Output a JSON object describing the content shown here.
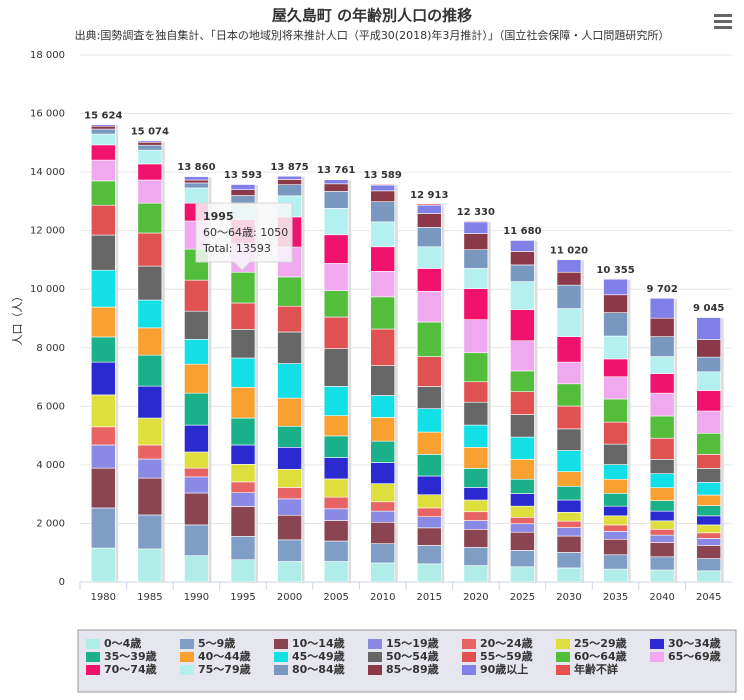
{
  "chart_data": {
    "type": "stacked_bar",
    "title": "屋久島町 の年齢別人口の推移",
    "subtitle": "出典:国勢調査を独自集計、「日本の地域別将来推計人口（平成30(2018)年3月推計）」（国立社会保障・人口問題研究所）",
    "y_label": "人口（人）",
    "categories": [
      "1980",
      "1985",
      "1990",
      "1995",
      "2000",
      "2005",
      "2010",
      "2015",
      "2020",
      "2025",
      "2030",
      "2035",
      "2040",
      "2045"
    ],
    "ylim": [
      0,
      18000
    ],
    "yticks": [
      0,
      {
        "value": 2000,
        "label": "2 000"
      },
      {
        "value": 4000,
        "label": "4 000"
      },
      {
        "value": 6000,
        "label": "6 000"
      },
      {
        "value": 8000,
        "label": "8 000"
      },
      {
        "value": 10000,
        "label": "10 000"
      },
      {
        "value": 12000,
        "label": "12 000"
      },
      {
        "value": 14000,
        "label": "14 000"
      },
      {
        "value": 16000,
        "label": "16 000"
      },
      {
        "value": 18000,
        "label": "18 000"
      }
    ],
    "grid": true,
    "legend": "bottom",
    "totals": [
      15624,
      15074,
      13860,
      13593,
      13875,
      13761,
      13589,
      12913,
      12330,
      11680,
      11020,
      10355,
      9702,
      9045
    ],
    "total_labels": [
      "15 624",
      "15 074",
      "13 860",
      "13 593",
      "13 875",
      "13 761",
      "13 589",
      "12 913",
      "12 330",
      "11 680",
      "11 020",
      "10 355",
      "9 702",
      "9 045"
    ],
    "series": [
      {
        "name": "0～4歳",
        "color": "#b0ece8",
        "values": [
          1160,
          1130,
          900,
          760,
          700,
          700,
          650,
          620,
          560,
          520,
          480,
          440,
          410,
          380
        ]
      },
      {
        "name": "5～9歳",
        "color": "#7f9ec6",
        "values": [
          1370,
          1160,
          1050,
          800,
          740,
          700,
          660,
          630,
          620,
          560,
          530,
          490,
          450,
          420
        ]
      },
      {
        "name": "10～14歳",
        "color": "#8b4452",
        "values": [
          1360,
          1260,
          1090,
          1020,
          840,
          700,
          730,
          600,
          620,
          620,
          560,
          530,
          490,
          450
        ]
      },
      {
        "name": "15～19歳",
        "color": "#8a8ae6",
        "values": [
          790,
          650,
          550,
          470,
          560,
          400,
          380,
          380,
          300,
          290,
          290,
          270,
          250,
          240
        ]
      },
      {
        "name": "20～24歳",
        "color": "#e86464",
        "values": [
          620,
          480,
          300,
          370,
          390,
          400,
          320,
          300,
          300,
          220,
          220,
          220,
          200,
          190
        ]
      },
      {
        "name": "25～29歳",
        "color": "#dede3c",
        "values": [
          1090,
          920,
          550,
          600,
          620,
          620,
          620,
          450,
          400,
          380,
          300,
          310,
          290,
          270
        ]
      },
      {
        "name": "30～34歳",
        "color": "#2a2ad0",
        "values": [
          1120,
          1090,
          920,
          660,
          750,
          730,
          720,
          640,
          430,
          430,
          420,
          330,
          330,
          310
        ]
      },
      {
        "name": "35～39歳",
        "color": "#1ab08a",
        "values": [
          860,
          1060,
          1090,
          920,
          720,
          740,
          730,
          740,
          650,
          490,
          470,
          440,
          360,
          350
        ]
      },
      {
        "name": "40～44歳",
        "color": "#f8a030",
        "values": [
          1020,
          930,
          990,
          1050,
          960,
          690,
          810,
          760,
          720,
          680,
          500,
          480,
          440,
          360
        ]
      },
      {
        "name": "45～49歳",
        "color": "#12dfe6",
        "values": [
          1260,
          950,
          850,
          1000,
          1180,
          1000,
          750,
          800,
          760,
          760,
          720,
          500,
          480,
          430
        ]
      },
      {
        "name": "50～54歳",
        "color": "#666666",
        "values": [
          1200,
          1160,
          960,
          980,
          1080,
          1290,
          1020,
          760,
          780,
          770,
          740,
          700,
          490,
          480
        ]
      },
      {
        "name": "55～59歳",
        "color": "#e05252",
        "values": [
          1020,
          1130,
          1060,
          900,
          880,
          1080,
          1250,
          1020,
          700,
          780,
          780,
          750,
          720,
          480
        ]
      },
      {
        "name": "60～64歳",
        "color": "#52be3c",
        "values": [
          830,
          1020,
          1060,
          1050,
          1000,
          900,
          1100,
          1180,
          990,
          710,
          760,
          790,
          760,
          720
        ]
      },
      {
        "name": "65～69歳",
        "color": "#f0a8ee",
        "values": [
          710,
          790,
          960,
          980,
          1020,
          930,
          870,
          1050,
          1130,
          1030,
          740,
          760,
          780,
          760
        ]
      },
      {
        "name": "70～74歳",
        "color": "#f0126c",
        "values": [
          520,
          550,
          610,
          820,
          1030,
          980,
          840,
          780,
          1060,
          1060,
          870,
          610,
          670,
          700
        ]
      },
      {
        "name": "75～79歳",
        "color": "#b4f0f0",
        "values": [
          370,
          470,
          520,
          520,
          720,
          900,
          850,
          740,
          690,
          960,
          960,
          780,
          580,
          640
        ]
      },
      {
        "name": "80～84歳",
        "color": "#7898c0",
        "values": [
          170,
          170,
          170,
          300,
          380,
          580,
          690,
          660,
          640,
          570,
          800,
          800,
          680,
          500
        ]
      },
      {
        "name": "85～89歳",
        "color": "#8b3848",
        "values": [
          100,
          100,
          100,
          200,
          180,
          260,
          370,
          480,
          550,
          460,
          440,
          610,
          630,
          600
        ]
      },
      {
        "name": "90歳以上",
        "color": "#8080e8",
        "values": [
          50,
          50,
          120,
          180,
          110,
          140,
          200,
          280,
          400,
          380,
          430,
          535,
          682,
          755
        ]
      },
      {
        "name": "年齢不詳",
        "color": "#e85050",
        "values": [
          4,
          4,
          10,
          13,
          15,
          21,
          29,
          43,
          30,
          10,
          10,
          10,
          10,
          10
        ]
      }
    ],
    "tooltip": {
      "title": "1995",
      "line": "60～64歳: 1050",
      "total": "Total: 13593"
    }
  }
}
